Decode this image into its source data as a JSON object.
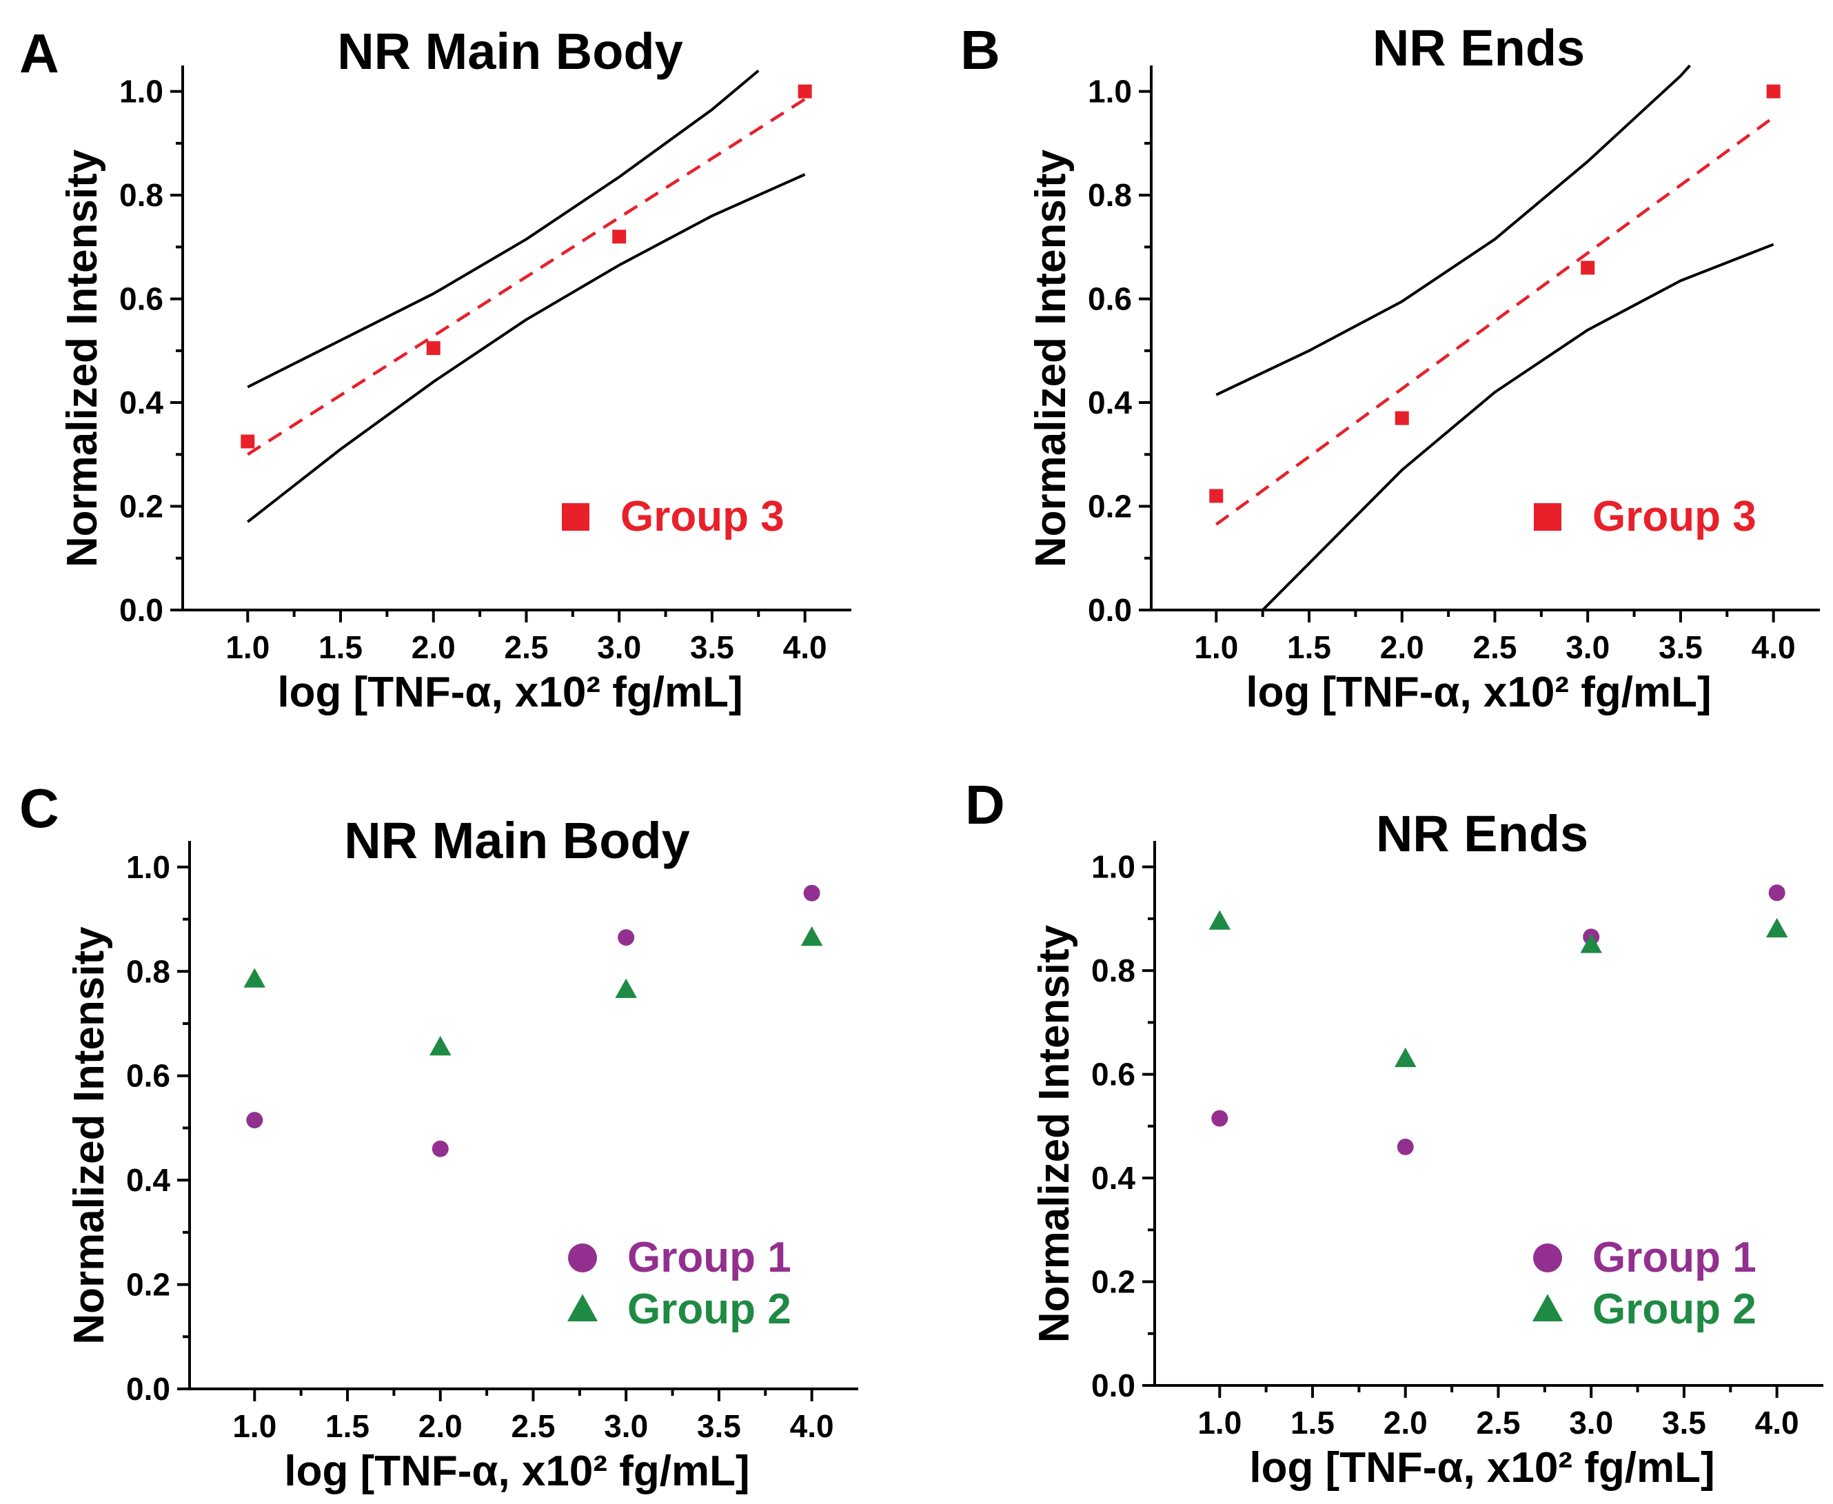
{
  "chart_data": [
    {
      "panel": "A",
      "type": "scatter",
      "title": "NR Main Body",
      "xlabel": "log [TNF-α, x10² fg/mL]",
      "ylabel": "Normalized Intensity",
      "xlim": [
        0.65,
        4.25
      ],
      "ylim": [
        0.0,
        1.05
      ],
      "xticks": [
        1.0,
        1.5,
        2.0,
        2.5,
        3.0,
        3.5,
        4.0
      ],
      "xtick_labels": [
        "1.0",
        "1.5",
        "2.0",
        "2.5",
        "3.0",
        "3.5",
        "4.0"
      ],
      "yticks": [
        0.0,
        0.2,
        0.4,
        0.6,
        0.8,
        1.0
      ],
      "ytick_labels": [
        "0.0",
        "0.2",
        "0.4",
        "0.6",
        "0.8",
        "1.0"
      ],
      "series": [
        {
          "name": "Group 3",
          "marker": "square",
          "color": "#e8202a",
          "x": [
            1.0,
            2.0,
            3.0,
            4.0
          ],
          "y": [
            0.325,
            0.505,
            0.72,
            1.0
          ]
        }
      ],
      "fit_line": {
        "style": "dashed",
        "color": "#e8202a",
        "x": [
          1.0,
          4.0
        ],
        "y": [
          0.3,
          0.985
        ]
      },
      "confidence_band": {
        "color": "#000000",
        "upper": {
          "x": [
            1.0,
            1.5,
            2.0,
            2.5,
            3.0,
            3.5,
            3.75
          ],
          "y": [
            0.43,
            0.52,
            0.61,
            0.715,
            0.835,
            0.965,
            1.04
          ]
        },
        "lower": {
          "x": [
            1.0,
            1.5,
            2.0,
            2.5,
            3.0,
            3.5,
            4.0
          ],
          "y": [
            0.17,
            0.31,
            0.44,
            0.56,
            0.665,
            0.76,
            0.84
          ]
        }
      },
      "legend_position": "bottom-right"
    },
    {
      "panel": "B",
      "type": "scatter",
      "title": "NR Ends",
      "xlabel": "log [TNF-α, x10² fg/mL]",
      "ylabel": "Normalized Intensity",
      "xlim": [
        0.65,
        4.25
      ],
      "ylim": [
        0.0,
        1.05
      ],
      "xticks": [
        1.0,
        1.5,
        2.0,
        2.5,
        3.0,
        3.5,
        4.0
      ],
      "xtick_labels": [
        "1.0",
        "1.5",
        "2.0",
        "2.5",
        "3.0",
        "3.5",
        "4.0"
      ],
      "yticks": [
        0.0,
        0.2,
        0.4,
        0.6,
        0.8,
        1.0
      ],
      "ytick_labels": [
        "0.0",
        "0.2",
        "0.4",
        "0.6",
        "0.8",
        "1.0"
      ],
      "series": [
        {
          "name": "Group 3",
          "marker": "square",
          "color": "#e8202a",
          "x": [
            1.0,
            2.0,
            3.0,
            4.0
          ],
          "y": [
            0.22,
            0.37,
            0.66,
            1.0
          ]
        }
      ],
      "fit_line": {
        "style": "dashed",
        "color": "#e8202a",
        "x": [
          1.0,
          4.0
        ],
        "y": [
          0.165,
          0.95
        ]
      },
      "confidence_band": {
        "color": "#000000",
        "upper": {
          "x": [
            1.0,
            1.5,
            2.0,
            2.5,
            3.0,
            3.5,
            3.55
          ],
          "y": [
            0.415,
            0.5,
            0.595,
            0.715,
            0.865,
            1.03,
            1.05
          ]
        },
        "lower": {
          "x": [
            1.25,
            1.5,
            2.0,
            2.5,
            3.0,
            3.5,
            4.0
          ],
          "y": [
            0.0,
            0.09,
            0.27,
            0.42,
            0.54,
            0.635,
            0.705
          ]
        }
      },
      "legend_position": "bottom-right"
    },
    {
      "panel": "C",
      "type": "scatter",
      "title": "NR Main Body",
      "xlabel": "log [TNF-α, x10² fg/mL]",
      "ylabel": "Normalized Intensity",
      "xlim": [
        0.65,
        4.25
      ],
      "ylim": [
        0.0,
        1.05
      ],
      "xticks": [
        1.0,
        1.5,
        2.0,
        2.5,
        3.0,
        3.5,
        4.0
      ],
      "xtick_labels": [
        "1.0",
        "1.5",
        "2.0",
        "2.5",
        "3.0",
        "3.5",
        "4.0"
      ],
      "yticks": [
        0.0,
        0.2,
        0.4,
        0.6,
        0.8,
        1.0
      ],
      "ytick_labels": [
        "0.0",
        "0.2",
        "0.4",
        "0.6",
        "0.8",
        "1.0"
      ],
      "series": [
        {
          "name": "Group 1",
          "marker": "circle",
          "color": "#93308f",
          "x": [
            1.0,
            2.0,
            3.0,
            4.0
          ],
          "y": [
            0.515,
            0.46,
            0.865,
            0.95
          ]
        },
        {
          "name": "Group 2",
          "marker": "triangle",
          "color": "#1f8a44",
          "x": [
            1.0,
            2.0,
            3.0,
            4.0
          ],
          "y": [
            0.785,
            0.655,
            0.765,
            0.865
          ]
        }
      ],
      "legend_position": "bottom-right"
    },
    {
      "panel": "D",
      "type": "scatter",
      "title": "NR Ends",
      "xlabel": "log [TNF-α, x10² fg/mL]",
      "ylabel": "Normalized Intensity",
      "xlim": [
        0.65,
        4.25
      ],
      "ylim": [
        0.0,
        1.05
      ],
      "xticks": [
        1.0,
        1.5,
        2.0,
        2.5,
        3.0,
        3.5,
        4.0
      ],
      "xtick_labels": [
        "1.0",
        "1.5",
        "2.0",
        "2.5",
        "3.0",
        "3.5",
        "4.0"
      ],
      "yticks": [
        0.0,
        0.2,
        0.4,
        0.6,
        0.8,
        1.0
      ],
      "ytick_labels": [
        "0.0",
        "0.2",
        "0.4",
        "0.6",
        "0.8",
        "1.0"
      ],
      "series": [
        {
          "name": "Group 1",
          "marker": "circle",
          "color": "#93308f",
          "x": [
            1.0,
            2.0,
            3.0,
            4.0
          ],
          "y": [
            0.515,
            0.46,
            0.865,
            0.95
          ]
        },
        {
          "name": "Group 2",
          "marker": "triangle",
          "color": "#1f8a44",
          "x": [
            1.0,
            2.0,
            3.0,
            4.0
          ],
          "y": [
            0.895,
            0.63,
            0.85,
            0.88
          ]
        }
      ],
      "legend_position": "bottom-right"
    }
  ]
}
